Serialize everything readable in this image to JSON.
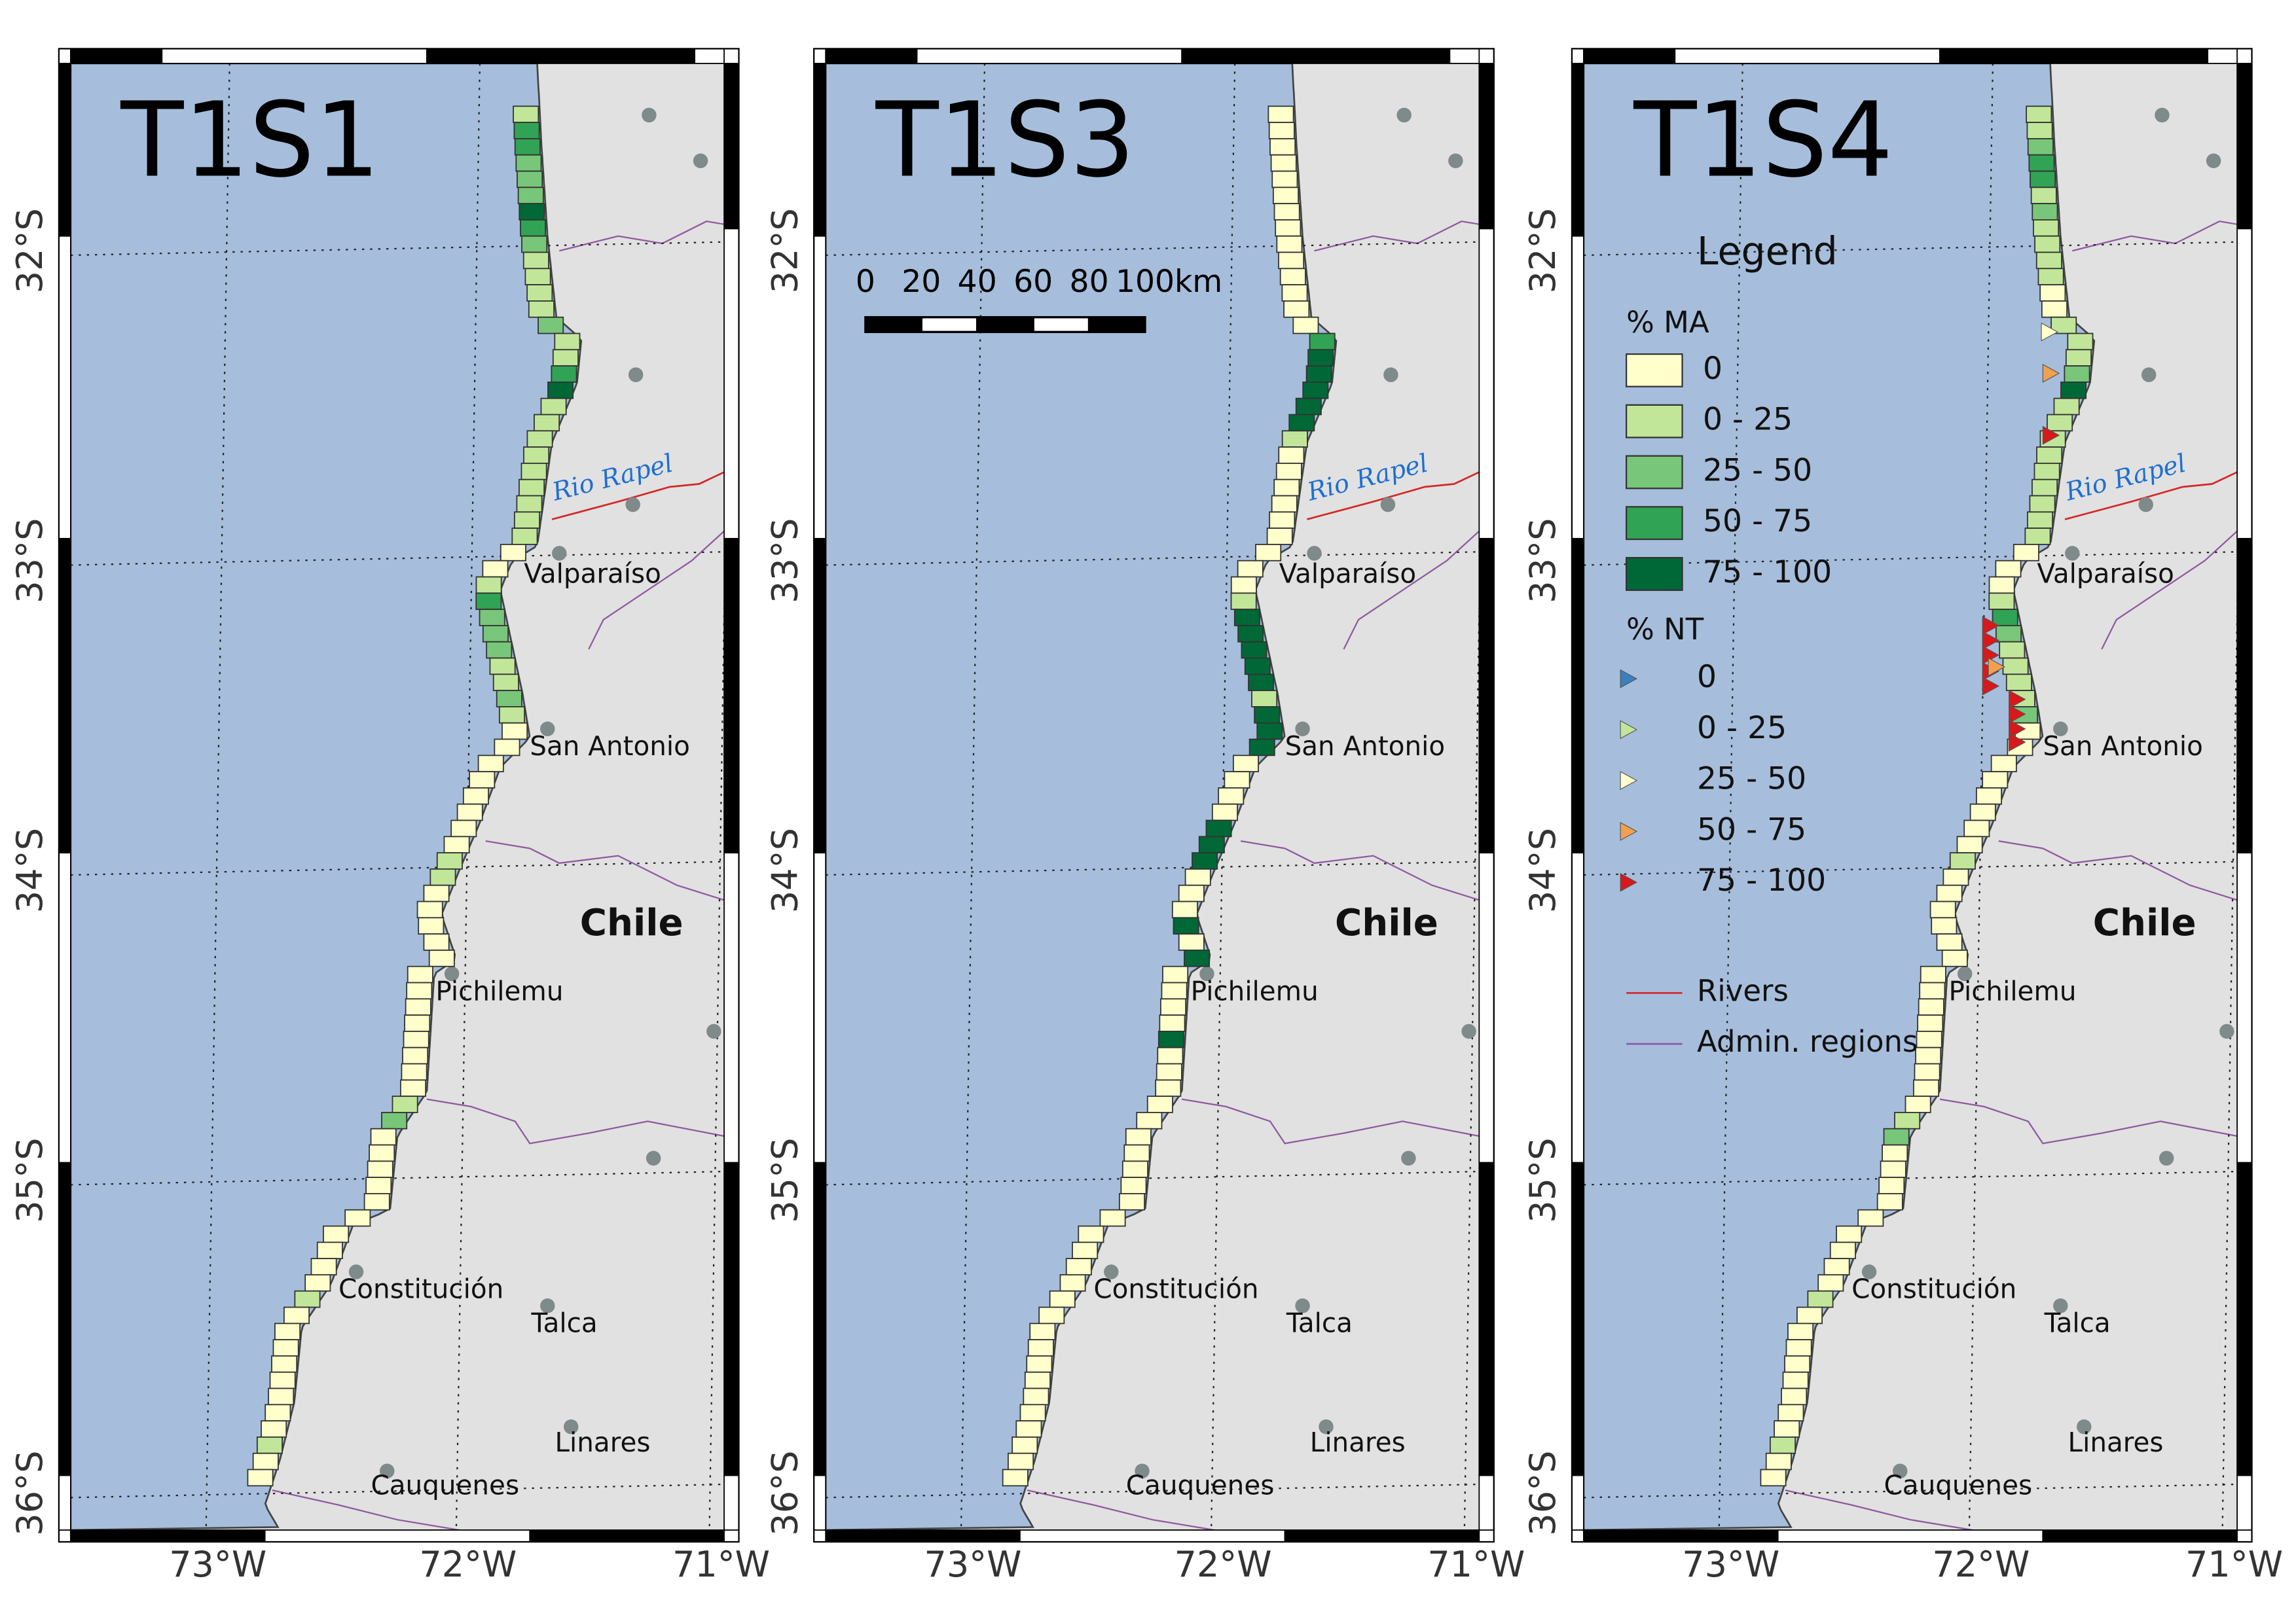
{
  "panels": [
    {
      "title": "T1S1",
      "cells": [
        1,
        3,
        3,
        2,
        2,
        2,
        4,
        3,
        2,
        1,
        1,
        1,
        1,
        2,
        1,
        1,
        3,
        4,
        1,
        1,
        1,
        1,
        1,
        1,
        1,
        1,
        1,
        0,
        0,
        1,
        3,
        2,
        2,
        2,
        1,
        1,
        2,
        1,
        0,
        0,
        0,
        0,
        0,
        0,
        0,
        0,
        1,
        1,
        0,
        0,
        0,
        0,
        0,
        0,
        0,
        0,
        0,
        0,
        0,
        0,
        0,
        1,
        2,
        0,
        0,
        0,
        0,
        0,
        0,
        0,
        0,
        0,
        0,
        1,
        0,
        0,
        0,
        0,
        0,
        0,
        0,
        0,
        1,
        0,
        0
      ]
    },
    {
      "title": "T1S3",
      "cells": [
        0,
        0,
        0,
        0,
        0,
        0,
        0,
        0,
        0,
        0,
        0,
        0,
        0,
        0,
        3,
        4,
        4,
        4,
        4,
        4,
        1,
        0,
        0,
        0,
        0,
        0,
        0,
        0,
        0,
        0,
        1,
        4,
        4,
        4,
        4,
        4,
        1,
        4,
        4,
        4,
        0,
        0,
        0,
        0,
        4,
        4,
        4,
        0,
        0,
        0,
        4,
        0,
        4,
        0,
        0,
        0,
        0,
        4,
        0,
        0,
        0,
        0,
        0,
        0,
        0,
        0,
        0,
        0,
        0,
        0,
        0,
        0,
        0,
        0,
        0,
        0,
        0,
        0,
        0,
        0,
        0,
        0,
        0,
        0,
        0
      ]
    },
    {
      "title": "T1S4",
      "cells": [
        1,
        1,
        2,
        3,
        3,
        1,
        2,
        1,
        1,
        1,
        1,
        0,
        0,
        1,
        1,
        1,
        2,
        4,
        1,
        1,
        1,
        1,
        1,
        1,
        1,
        1,
        1,
        0,
        0,
        0,
        1,
        3,
        2,
        1,
        1,
        1,
        1,
        2,
        0,
        0,
        0,
        0,
        0,
        0,
        0,
        0,
        1,
        0,
        0,
        0,
        0,
        0,
        0,
        0,
        0,
        0,
        0,
        0,
        0,
        0,
        0,
        0,
        1,
        2,
        0,
        0,
        0,
        0,
        0,
        0,
        0,
        0,
        0,
        1,
        0,
        0,
        0,
        0,
        0,
        0,
        0,
        0,
        1,
        0,
        0
      ]
    }
  ],
  "map": {
    "lon_labels": [
      "73°W",
      "72°W",
      "71°W"
    ],
    "lat_labels": [
      "32°S",
      "33°S",
      "34°S",
      "35°S",
      "36°S"
    ],
    "cities": [
      "Valparaíso",
      "San Antonio",
      "Pichilemu",
      "Constitución",
      "Talca",
      "Linares",
      "Cauquenes"
    ],
    "country": "Chile",
    "river": "Rio Rapel"
  },
  "scale_bar": {
    "ticks": [
      0,
      20,
      40,
      60,
      80,
      100
    ],
    "unit": "km"
  },
  "legend": {
    "title": "Legend",
    "ma": {
      "title": "% MA",
      "items": [
        {
          "label": "0",
          "color": "#ffffcc"
        },
        {
          "label": "0 - 25",
          "color": "#c2e699"
        },
        {
          "label": "25 - 50",
          "color": "#78c679"
        },
        {
          "label": "50 - 75",
          "color": "#31a354"
        },
        {
          "label": "75 - 100",
          "color": "#006837"
        }
      ]
    },
    "nt": {
      "title": "% NT",
      "items": [
        {
          "label": "0",
          "color": "#3a7fc0"
        },
        {
          "label": "0 - 25",
          "color": "#c2e699"
        },
        {
          "label": "25 - 50",
          "color": "#ffffcc"
        },
        {
          "label": "50 - 75",
          "color": "#f0a050"
        },
        {
          "label": "75 - 100",
          "color": "#d7191c"
        }
      ]
    },
    "lines": [
      {
        "label": "Rivers",
        "color": "#d62728"
      },
      {
        "label": "Admin. regions",
        "color": "#8e5aa0"
      }
    ]
  }
}
